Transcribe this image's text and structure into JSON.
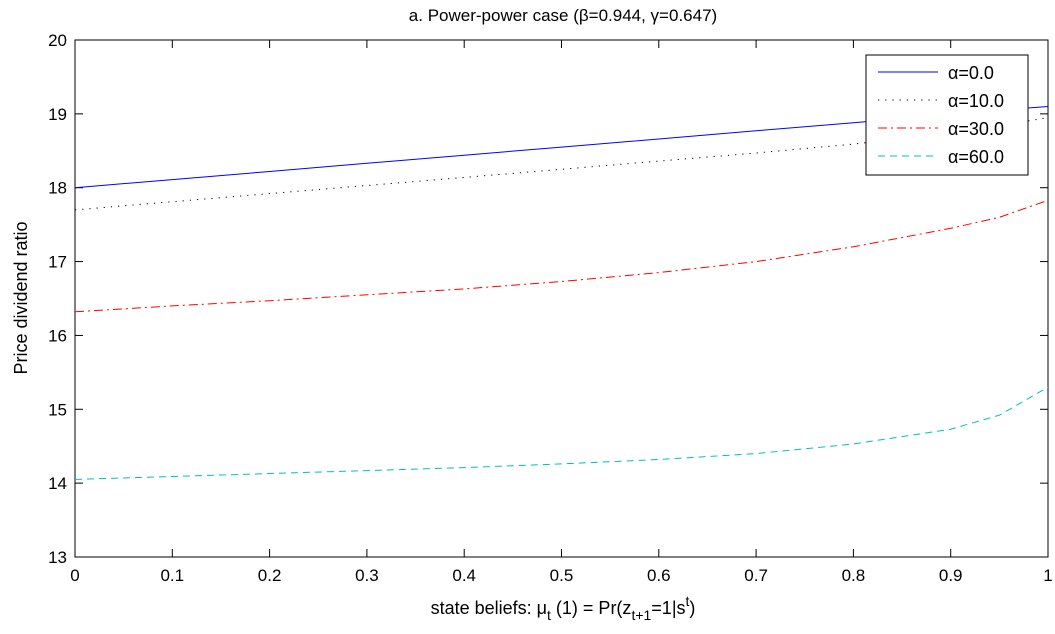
{
  "chart_data": {
    "type": "line",
    "title": "a. Power-power case (β=0.944, γ=0.647)",
    "xlabel": "state beliefs: μ_t (1) = Pr(z_{t+1}=1|s^t)",
    "xlabel_parts": {
      "pre": "state beliefs: μ",
      "sub1": "t",
      "mid": " (1) = Pr(z",
      "sub2": "t+1",
      "mid2": "=1|s",
      "sup": "t",
      "post": ")"
    },
    "ylabel": "Price dividend ratio",
    "xlim": [
      0,
      1
    ],
    "ylim": [
      13,
      20
    ],
    "xticks": [
      "0",
      "0.1",
      "0.2",
      "0.3",
      "0.4",
      "0.5",
      "0.6",
      "0.7",
      "0.8",
      "0.9",
      "1"
    ],
    "yticks": [
      "13",
      "14",
      "15",
      "16",
      "17",
      "18",
      "19",
      "20"
    ],
    "grid": false,
    "legend_position": "top-right",
    "x": [
      0,
      0.1,
      0.2,
      0.3,
      0.4,
      0.5,
      0.6,
      0.7,
      0.8,
      0.9,
      0.95,
      1.0
    ],
    "series": [
      {
        "name": "α=0.0",
        "color": "#0000ff",
        "dash": "solid",
        "values": [
          18.0,
          18.11,
          18.22,
          18.33,
          18.44,
          18.55,
          18.66,
          18.77,
          18.88,
          18.99,
          19.05,
          19.1
        ]
      },
      {
        "name": "α=10.0",
        "color": "#000000",
        "dash": "dotted",
        "values": [
          17.7,
          17.81,
          17.92,
          18.03,
          18.14,
          18.25,
          18.36,
          18.47,
          18.59,
          18.74,
          18.84,
          18.95
        ]
      },
      {
        "name": "α=30.0",
        "color": "#ff0000",
        "dash": "dashdot",
        "values": [
          16.32,
          16.4,
          16.47,
          16.55,
          16.63,
          16.73,
          16.85,
          17.0,
          17.2,
          17.45,
          17.6,
          17.83
        ]
      },
      {
        "name": "α=60.0",
        "color": "#00bfbf",
        "dash": "dashed",
        "values": [
          14.05,
          14.09,
          14.13,
          14.17,
          14.21,
          14.26,
          14.32,
          14.4,
          14.53,
          14.73,
          14.92,
          15.3
        ]
      }
    ]
  }
}
